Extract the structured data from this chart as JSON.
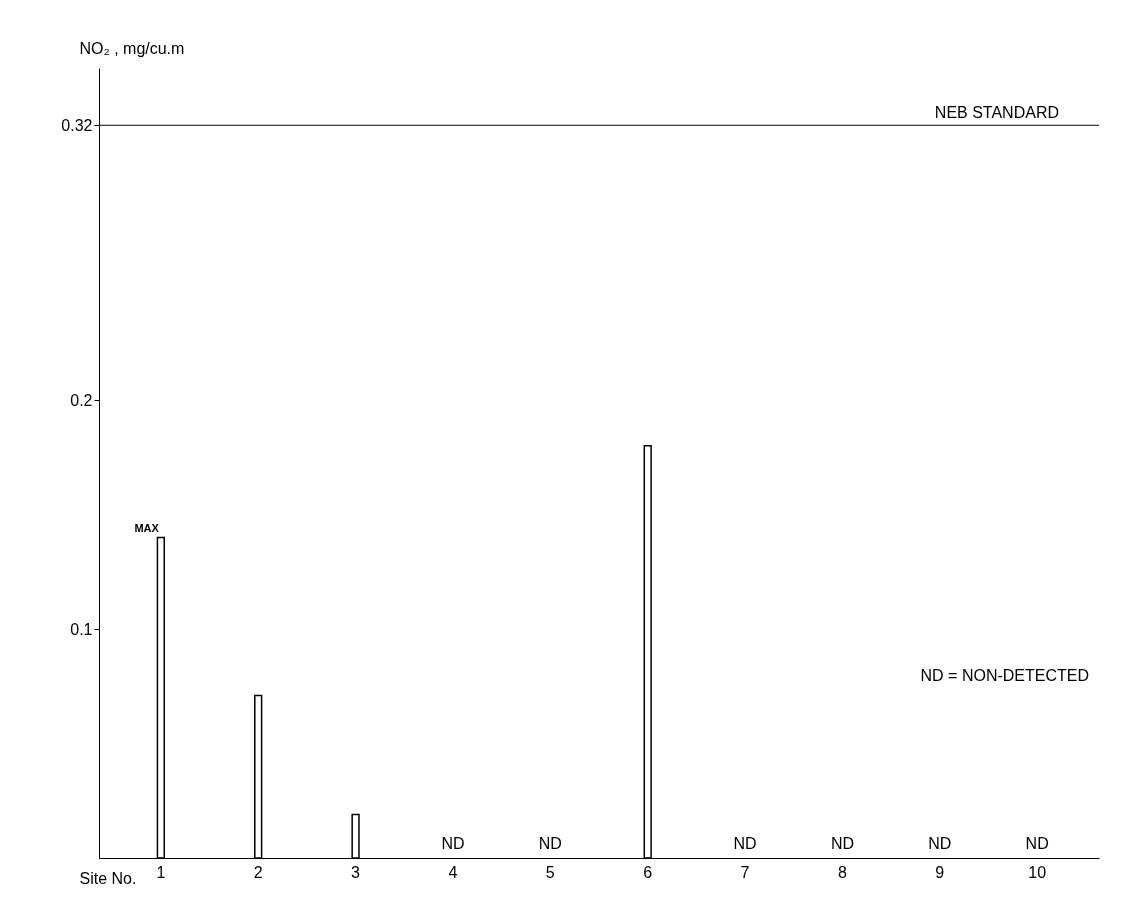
{
  "chart_data": {
    "type": "bar",
    "xlabel": "Site No.",
    "ylabel": "NO₂ , mg/cu.m",
    "categories": [
      "1",
      "2",
      "3",
      "4",
      "5",
      "6",
      "7",
      "8",
      "9",
      "10"
    ],
    "values": [
      0.14,
      0.071,
      0.019,
      null,
      null,
      0.18,
      null,
      null,
      null,
      null
    ],
    "value_labels": [
      null,
      null,
      null,
      "ND",
      "ND",
      null,
      "ND",
      "ND",
      "ND",
      "ND"
    ],
    "color": "#ffffff",
    "ylim": [
      0,
      0.345
    ],
    "yticks": [
      0.1,
      0.2,
      0.32
    ],
    "grid": false,
    "ref_lines": [
      {
        "axis": "y",
        "value": 0.32,
        "label": "NEB STANDARD"
      }
    ],
    "annotations": [
      {
        "text": "MAX",
        "x": "1",
        "y": 0.14
      },
      "ND = NON-DETECTED"
    ]
  }
}
